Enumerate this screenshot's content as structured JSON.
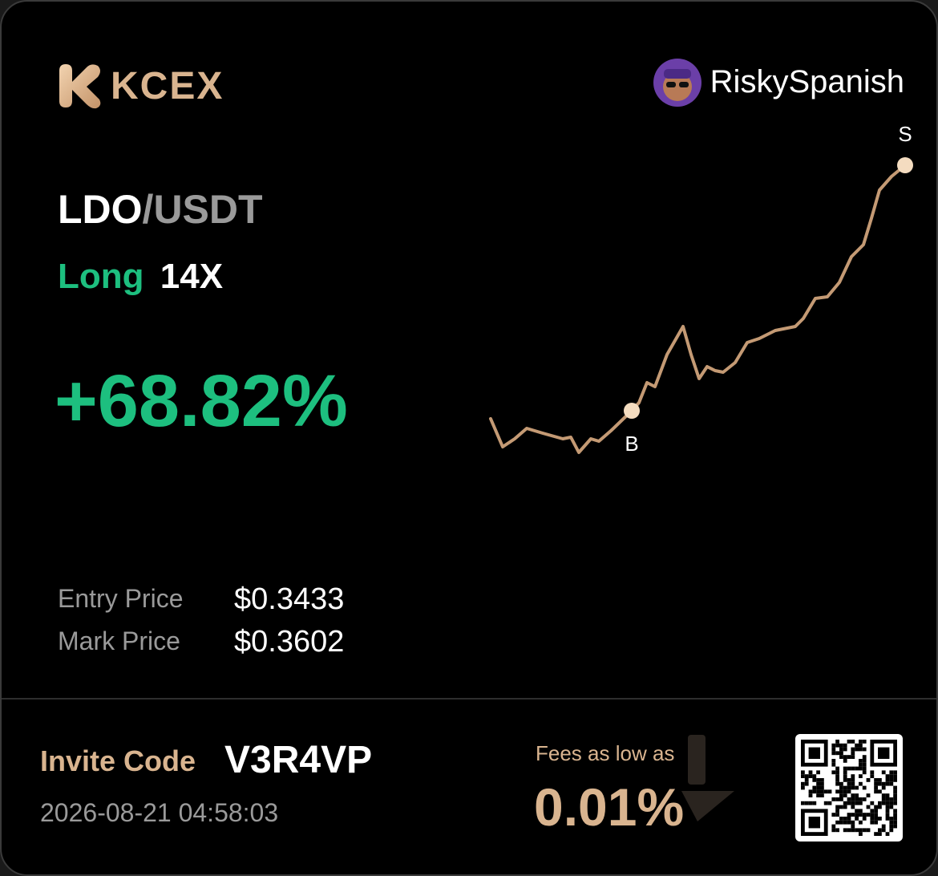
{
  "header": {
    "brand": "KCEX",
    "username": "RiskySpanish"
  },
  "position": {
    "base": "LDO",
    "quote": "/USDT",
    "side": "Long",
    "leverage": "14X",
    "pnl": "+68.82%"
  },
  "chart": {
    "buy_marker": "B",
    "sell_marker": "S"
  },
  "prices": {
    "entry_label": "Entry Price",
    "entry_value": "$0.3433",
    "mark_label": "Mark Price",
    "mark_value": "$0.3602"
  },
  "footer": {
    "invite_label": "Invite Code",
    "invite_code": "V3R4VP",
    "timestamp": "2026-08-21 04:58:03",
    "fees_label": "Fees as low as",
    "fees_value": "0.01%"
  }
}
